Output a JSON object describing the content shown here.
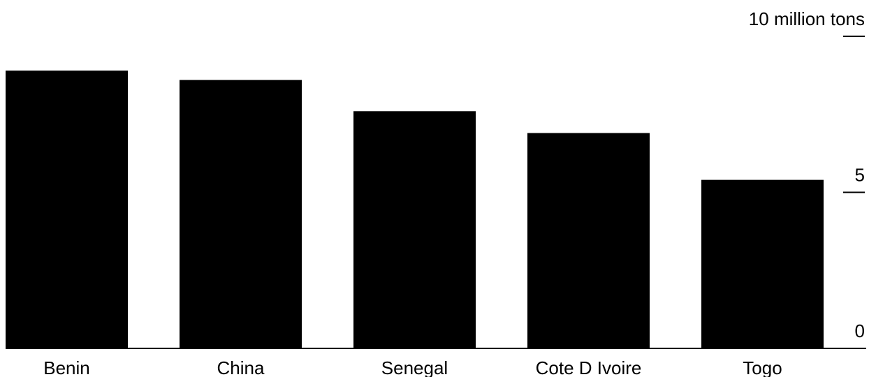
{
  "chart_data": {
    "type": "bar",
    "categories": [
      "Benin",
      "China",
      "Senegal",
      "Cote D Ivoire",
      "Togo"
    ],
    "values": [
      8.9,
      8.6,
      7.6,
      6.9,
      5.4
    ],
    "ylim": [
      0,
      10
    ],
    "y_ticks": [
      {
        "value": 10,
        "label": "10 million tons"
      },
      {
        "value": 5,
        "label": "5"
      },
      {
        "value": 0,
        "label": "0"
      }
    ],
    "y_axis_position": "right",
    "grid": false,
    "colors": {
      "bar": "#000000",
      "axis": "#000000",
      "background": "#ffffff"
    }
  }
}
